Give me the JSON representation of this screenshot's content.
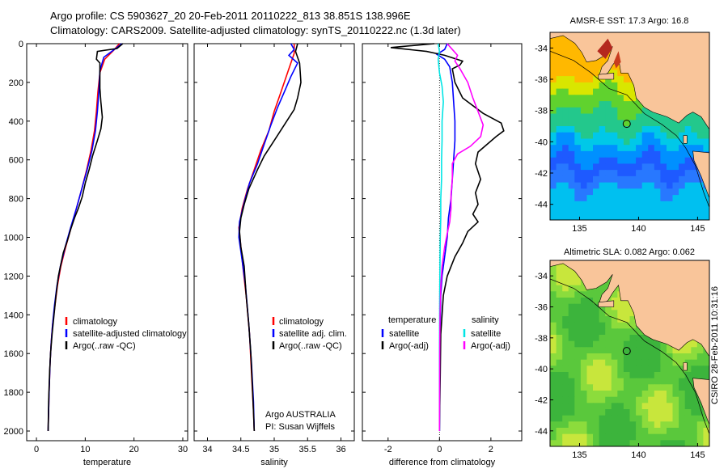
{
  "header": {
    "line1": "Argo profile: CS 5903627_20 20-Feb-2011 20110222_813 38.851S 138.996E",
    "line2": "Climatology: CARS2009. Satellite-adjusted climatology: synTS_20110222.nc (1.3d later)"
  },
  "stamp": "CSIRO 28-Feb-2011 10:31:16",
  "colors": {
    "climatology": "#ff0000",
    "satellite": "#0000ff",
    "argo": "#000000",
    "cyan": "#00e5e5",
    "magenta": "#ff00ff",
    "land": "#f9c59a"
  },
  "chart_data": [
    {
      "type": "line",
      "id": "temperature",
      "xlabel": "temperature",
      "xlim": [
        -2,
        31
      ],
      "ylim": [
        0,
        2050
      ],
      "yreverse": true,
      "xticks": [
        0,
        10,
        20,
        30
      ],
      "yticks": [
        0,
        200,
        400,
        600,
        800,
        1000,
        1200,
        1400,
        1600,
        1800,
        2000
      ],
      "legend": [
        "climatology",
        "satellite-adjusted climatology",
        "Argo(..raw -QC)"
      ],
      "series": [
        {
          "name": "climatology",
          "color": "#ff0000",
          "points": [
            [
              17,
              0
            ],
            [
              16,
              30
            ],
            [
              14,
              80
            ],
            [
              13,
              150
            ],
            [
              12.6,
              250
            ],
            [
              12.3,
              350
            ],
            [
              11.9,
              450
            ],
            [
              11.2,
              550
            ],
            [
              10.3,
              650
            ],
            [
              9.3,
              750
            ],
            [
              8.2,
              850
            ],
            [
              7.1,
              950
            ],
            [
              6,
              1050
            ],
            [
              5,
              1150
            ],
            [
              4.3,
              1250
            ],
            [
              3.8,
              1350
            ],
            [
              3.3,
              1450
            ],
            [
              3,
              1550
            ],
            [
              2.8,
              1650
            ],
            [
              2.6,
              1800
            ],
            [
              2.4,
              2000
            ]
          ]
        },
        {
          "name": "satellite-adjusted climatology",
          "color": "#0000ff",
          "points": [
            [
              17.5,
              0
            ],
            [
              16.5,
              20
            ],
            [
              13.8,
              70
            ],
            [
              13,
              140
            ],
            [
              12.8,
              250
            ],
            [
              12.5,
              350
            ],
            [
              12.1,
              450
            ],
            [
              11.4,
              550
            ],
            [
              10.4,
              650
            ],
            [
              9.3,
              750
            ],
            [
              8.2,
              850
            ],
            [
              7,
              950
            ],
            [
              5.9,
              1050
            ],
            [
              4.9,
              1150
            ],
            [
              4.2,
              1250
            ],
            [
              3.7,
              1350
            ],
            [
              3.3,
              1450
            ],
            [
              3,
              1550
            ],
            [
              2.8,
              1650
            ],
            [
              2.6,
              1800
            ],
            [
              2.4,
              2000
            ]
          ]
        },
        {
          "name": "Argo(..raw -QC)",
          "color": "#000000",
          "points": [
            [
              17.7,
              0
            ],
            [
              16.5,
              25
            ],
            [
              12.5,
              40
            ],
            [
              12.3,
              80
            ],
            [
              13,
              100
            ],
            [
              13,
              160
            ],
            [
              13,
              230
            ],
            [
              13.2,
              300
            ],
            [
              13.5,
              380
            ],
            [
              13.2,
              440
            ],
            [
              12.5,
              500
            ],
            [
              11.5,
              580
            ],
            [
              10.8,
              650
            ],
            [
              10,
              720
            ],
            [
              9.4,
              790
            ],
            [
              8.6,
              850
            ],
            [
              7.8,
              900
            ],
            [
              7,
              960
            ],
            [
              6.3,
              1020
            ],
            [
              5.5,
              1080
            ],
            [
              5,
              1140
            ],
            [
              4.5,
              1200
            ],
            [
              4,
              1300
            ],
            [
              3.6,
              1400
            ],
            [
              3.2,
              1500
            ],
            [
              2.9,
              1600
            ],
            [
              2.7,
              1700
            ],
            [
              2.5,
              1850
            ],
            [
              2.4,
              2000
            ]
          ]
        }
      ]
    },
    {
      "type": "line",
      "id": "salinity",
      "xlabel": "salinity",
      "xlim": [
        33.8,
        36.2
      ],
      "ylim": [
        0,
        2050
      ],
      "yreverse": true,
      "xticks": [
        34,
        34.5,
        35,
        35.5,
        36
      ],
      "xticklabels": [
        "34",
        "34.5",
        "35",
        "35.5",
        "36"
      ],
      "legend": [
        "climatology",
        "satellite adj. clim.",
        "Argo(..raw -QC)"
      ],
      "annotation": [
        "Argo AUSTRALIA",
        "PI: Susan Wijffels"
      ],
      "series": [
        {
          "name": "climatology",
          "color": "#ff0000",
          "points": [
            [
              35.3,
              0
            ],
            [
              35.3,
              50
            ],
            [
              35.2,
              150
            ],
            [
              35.1,
              250
            ],
            [
              35,
              350
            ],
            [
              34.92,
              450
            ],
            [
              34.8,
              550
            ],
            [
              34.7,
              650
            ],
            [
              34.6,
              750
            ],
            [
              34.52,
              850
            ],
            [
              34.47,
              950
            ],
            [
              34.5,
              1050
            ],
            [
              34.53,
              1150
            ],
            [
              34.58,
              1300
            ],
            [
              34.63,
              1500
            ],
            [
              34.66,
              1700
            ],
            [
              34.69,
              1900
            ],
            [
              34.7,
              2000
            ]
          ]
        },
        {
          "name": "satellite adj. clim.",
          "color": "#0000ff",
          "points": [
            [
              35.25,
              0
            ],
            [
              35.3,
              30
            ],
            [
              35.22,
              60
            ],
            [
              35.35,
              100
            ],
            [
              35.25,
              170
            ],
            [
              35.15,
              250
            ],
            [
              35.05,
              330
            ],
            [
              34.95,
              420
            ],
            [
              34.85,
              520
            ],
            [
              34.75,
              620
            ],
            [
              34.63,
              720
            ],
            [
              34.55,
              820
            ],
            [
              34.48,
              920
            ],
            [
              34.47,
              1000
            ],
            [
              34.52,
              1120
            ],
            [
              34.57,
              1250
            ],
            [
              34.62,
              1450
            ],
            [
              34.66,
              1650
            ],
            [
              34.69,
              1850
            ],
            [
              34.7,
              2000
            ]
          ]
        },
        {
          "name": "Argo(..raw -QC)",
          "color": "#000000",
          "points": [
            [
              35.35,
              0
            ],
            [
              35.32,
              40
            ],
            [
              35.38,
              100
            ],
            [
              35.4,
              200
            ],
            [
              35.35,
              280
            ],
            [
              35.3,
              340
            ],
            [
              35.15,
              420
            ],
            [
              35,
              500
            ],
            [
              34.85,
              580
            ],
            [
              34.75,
              650
            ],
            [
              34.62,
              750
            ],
            [
              34.55,
              830
            ],
            [
              34.5,
              900
            ],
            [
              34.48,
              970
            ],
            [
              34.5,
              1050
            ],
            [
              34.55,
              1150
            ],
            [
              34.58,
              1300
            ],
            [
              34.62,
              1450
            ],
            [
              34.65,
              1600
            ],
            [
              34.67,
              1750
            ],
            [
              34.69,
              1900
            ],
            [
              34.7,
              2000
            ]
          ]
        }
      ]
    },
    {
      "type": "line",
      "id": "difference",
      "xlabel": "difference from climatology",
      "xlim": [
        -3,
        3.2
      ],
      "ylim": [
        0,
        2050
      ],
      "yreverse": true,
      "xticks": [
        -2,
        0,
        2
      ],
      "legend_left_title": "temperature",
      "legend_left": [
        "satellite",
        "Argo(-adj)"
      ],
      "legend_right_title": "salinity",
      "legend_right": [
        "satellite",
        "Argo(-adj)"
      ],
      "series": [
        {
          "name": "temperature satellite",
          "color": "#0000ff",
          "points": [
            [
              0.3,
              0
            ],
            [
              0.2,
              30
            ],
            [
              -0.1,
              55
            ],
            [
              0.2,
              80
            ],
            [
              0.4,
              120
            ],
            [
              0.5,
              200
            ],
            [
              0.55,
              300
            ],
            [
              0.6,
              400
            ],
            [
              0.6,
              500
            ],
            [
              0.55,
              600
            ],
            [
              0.5,
              700
            ],
            [
              0.45,
              800
            ],
            [
              0.35,
              900
            ],
            [
              0.3,
              1000
            ],
            [
              0.2,
              1100
            ],
            [
              0.1,
              1200
            ],
            [
              0.05,
              1300
            ],
            [
              0.02,
              1500
            ],
            [
              0.01,
              1800
            ],
            [
              0,
              2000
            ]
          ]
        },
        {
          "name": "temperature Argo(-adj)",
          "color": "#000000",
          "points": [
            [
              -0.2,
              0
            ],
            [
              -1.9,
              20
            ],
            [
              -0.5,
              40
            ],
            [
              0.2,
              60
            ],
            [
              0.9,
              90
            ],
            [
              0.8,
              110
            ],
            [
              0.5,
              130
            ],
            [
              0.6,
              200
            ],
            [
              0.9,
              280
            ],
            [
              1.7,
              360
            ],
            [
              2.4,
              410
            ],
            [
              2.5,
              450
            ],
            [
              2.2,
              480
            ],
            [
              1.5,
              560
            ],
            [
              1.4,
              620
            ],
            [
              1.6,
              700
            ],
            [
              1.4,
              770
            ],
            [
              1.5,
              830
            ],
            [
              1.3,
              880
            ],
            [
              1.5,
              920
            ],
            [
              1.1,
              970
            ],
            [
              0.9,
              1030
            ],
            [
              0.6,
              1100
            ],
            [
              0.3,
              1200
            ],
            [
              0.15,
              1300
            ],
            [
              0.1,
              1400
            ],
            [
              0.05,
              1500
            ],
            [
              0.03,
              1700
            ],
            [
              0.01,
              1900
            ],
            [
              0,
              2000
            ]
          ]
        },
        {
          "name": "salinity satellite",
          "color": "#00e5e5",
          "points": [
            [
              -0.05,
              0
            ],
            [
              0,
              40
            ],
            [
              -0.05,
              80
            ],
            [
              0,
              150
            ],
            [
              0.1,
              220
            ],
            [
              0.15,
              300
            ],
            [
              0.1,
              400
            ],
            [
              0.1,
              500
            ],
            [
              0.08,
              600
            ],
            [
              0.08,
              700
            ],
            [
              0.05,
              800
            ],
            [
              0.05,
              900
            ],
            [
              0.03,
              1000
            ],
            [
              0.02,
              1100
            ],
            [
              0.01,
              1300
            ],
            [
              0,
              1600
            ],
            [
              0,
              2000
            ]
          ]
        },
        {
          "name": "salinity Argo(-adj)",
          "color": "#ff00ff",
          "points": [
            [
              0.3,
              0
            ],
            [
              0.5,
              30
            ],
            [
              0.7,
              60
            ],
            [
              0.6,
              90
            ],
            [
              0.8,
              130
            ],
            [
              1.1,
              200
            ],
            [
              1.3,
              280
            ],
            [
              1.5,
              350
            ],
            [
              1.7,
              420
            ],
            [
              1.6,
              480
            ],
            [
              1.2,
              530
            ],
            [
              0.7,
              570
            ],
            [
              0.5,
              620
            ],
            [
              0.5,
              700
            ],
            [
              0.45,
              780
            ],
            [
              0.45,
              850
            ],
            [
              0.4,
              920
            ],
            [
              0.3,
              980
            ],
            [
              0.2,
              1050
            ],
            [
              0.1,
              1150
            ],
            [
              0.05,
              1250
            ],
            [
              0.02,
              1400
            ],
            [
              0.01,
              1600
            ],
            [
              0,
              2000
            ]
          ]
        }
      ]
    },
    {
      "type": "heatmap",
      "id": "sst-map",
      "title": "AMSR-E SST: 17.3 Argo: 16.8",
      "xlim": [
        132.5,
        146
      ],
      "ylim": [
        -45,
        -33
      ],
      "xticks": [
        135,
        140,
        145
      ],
      "yticks": [
        -34,
        -36,
        -38,
        -40,
        -42,
        -44
      ],
      "argo_position": [
        138.996,
        -38.851
      ]
    },
    {
      "type": "heatmap",
      "id": "sla-map",
      "title": "Altimetric SLA: 0.082 Argo: 0.062",
      "xlim": [
        132.5,
        146
      ],
      "ylim": [
        -45,
        -33
      ],
      "xticks": [
        135,
        140,
        145
      ],
      "yticks": [
        -34,
        -36,
        -38,
        -40,
        -42,
        -44
      ],
      "argo_position": [
        138.996,
        -38.851
      ]
    }
  ]
}
